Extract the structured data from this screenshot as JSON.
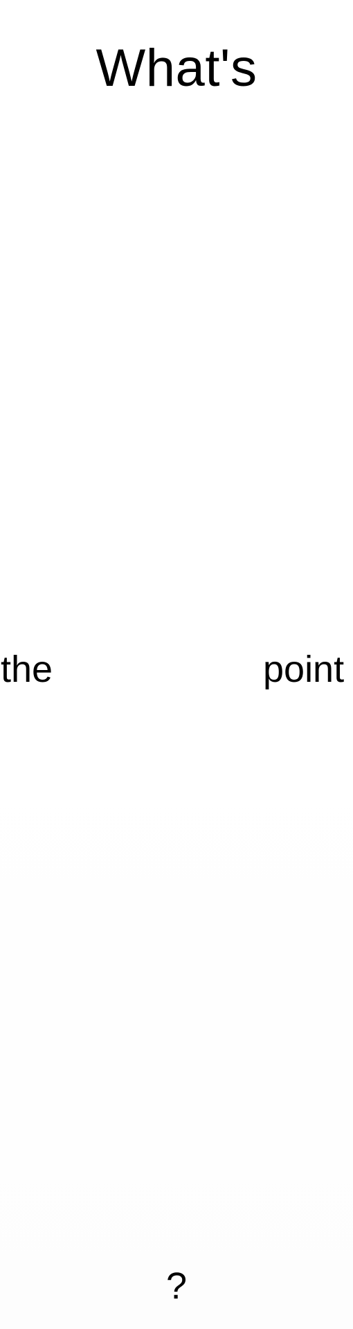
{
  "words": {
    "top": "What's",
    "middle_left": "the",
    "middle_right": "point",
    "bottom": "?"
  }
}
